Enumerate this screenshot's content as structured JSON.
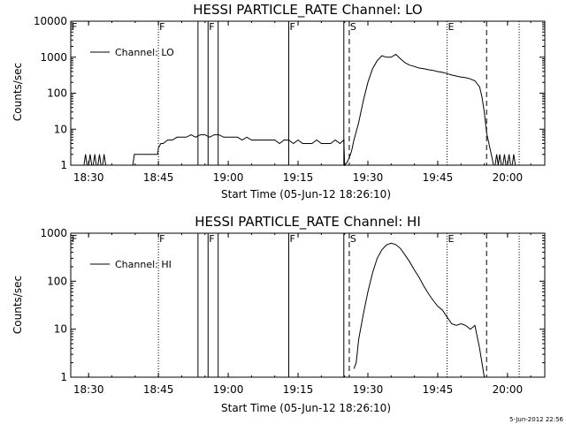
{
  "footer": {
    "timestamp": "5-Jun-2012 22:56"
  },
  "chart_data": [
    {
      "type": "line",
      "title": "HESSI PARTICLE_RATE Channel: LO",
      "xlabel": "Start Time (05-Jun-12 18:26:10)",
      "ylabel": "Counts/sec",
      "y_scale": "log",
      "ylim": [
        1,
        10000
      ],
      "xlim": [
        "18:26:10",
        "20:08"
      ],
      "x_ticks": [
        "18:30",
        "18:45",
        "19:00",
        "19:15",
        "19:30",
        "19:45",
        "20:00"
      ],
      "y_ticks": [
        "1",
        "10",
        "100",
        "1000",
        "10000"
      ],
      "legend": {
        "position": "top-left",
        "entries": [
          "Channel: LO"
        ]
      },
      "grid": false,
      "color": "#000000",
      "flags": [
        {
          "label": "F",
          "time": "18:26:10",
          "style": "none"
        },
        {
          "label": "F",
          "time": "18:45:00",
          "style": "dotted"
        },
        {
          "label": "",
          "time": "18:53:30",
          "style": "solid"
        },
        {
          "label": "F",
          "time": "18:55:40",
          "style": "solid"
        },
        {
          "label": "",
          "time": "18:57:50",
          "style": "solid"
        },
        {
          "label": "F",
          "time": "19:13:00",
          "style": "solid"
        },
        {
          "label": "",
          "time": "19:24:50",
          "style": "solid"
        },
        {
          "label": "S",
          "time": "19:26:00",
          "style": "dashed"
        },
        {
          "label": "E",
          "time": "19:47:00",
          "style": "dotted"
        },
        {
          "label": "",
          "time": "19:55:30",
          "style": "dashed"
        },
        {
          "label": "",
          "time": "20:02:30",
          "style": "dotted"
        }
      ],
      "series": [
        {
          "name": "Channel: LO",
          "x": [
            "18:29:00",
            "18:29:20",
            "18:29:40",
            "18:30:00",
            "18:30:20",
            "18:30:40",
            "18:31:00",
            "18:31:20",
            "18:31:40",
            "18:32:00",
            "18:32:20",
            "18:32:40",
            "18:33:00",
            "18:33:20",
            "18:33:40",
            "18:39:30",
            "18:39:50",
            "18:40:10",
            "18:40:30",
            "18:40:50",
            "18:41:30",
            "18:44:50",
            "18:45:00",
            "18:45:30",
            "18:46:00",
            "18:47:00",
            "18:48:00",
            "18:49:00",
            "18:50:00",
            "18:51:00",
            "18:52:00",
            "18:53:00",
            "18:54:00",
            "18:55:00",
            "18:56:00",
            "18:57:00",
            "18:58:00",
            "18:59:00",
            "19:00:00",
            "19:01:00",
            "19:02:00",
            "19:03:00",
            "19:04:00",
            "19:05:00",
            "19:06:00",
            "19:07:00",
            "19:08:00",
            "19:09:00",
            "19:10:00",
            "19:11:00",
            "19:12:00",
            "19:13:00",
            "19:14:00",
            "19:15:00",
            "19:16:00",
            "19:17:00",
            "19:18:00",
            "19:19:00",
            "19:20:00",
            "19:21:00",
            "19:22:00",
            "19:23:00",
            "19:24:00",
            "19:24:50",
            "19:25:00",
            "19:25:30",
            "19:26:00",
            "19:26:30",
            "19:27:00",
            "19:28:00",
            "19:29:00",
            "19:30:00",
            "19:31:00",
            "19:32:00",
            "19:33:00",
            "19:34:00",
            "19:35:00",
            "19:36:00",
            "19:37:00",
            "19:38:00",
            "19:39:00",
            "19:40:00",
            "19:41:00",
            "19:42:00",
            "19:43:00",
            "19:44:00",
            "19:45:00",
            "19:46:00",
            "19:47:00",
            "19:48:00",
            "19:49:00",
            "19:50:00",
            "19:51:00",
            "19:52:00",
            "19:53:00",
            "19:54:00",
            "19:54:30",
            "19:55:00",
            "19:55:30",
            "19:56:30",
            "19:57:00",
            "19:57:20",
            "19:57:40",
            "19:58:00",
            "19:58:20",
            "19:58:40",
            "19:59:00",
            "19:59:20",
            "19:59:40",
            "20:00:00",
            "20:00:20",
            "20:00:40",
            "20:01:00",
            "20:01:20",
            "20:01:40"
          ],
          "y": [
            1,
            2,
            1,
            1,
            2,
            1,
            1,
            2,
            1,
            1,
            2,
            1,
            1,
            2,
            1,
            1,
            2,
            2,
            2,
            2,
            2,
            2,
            3,
            4,
            4,
            5,
            5,
            6,
            6,
            6,
            7,
            6,
            7,
            7,
            6,
            7,
            7,
            6,
            6,
            6,
            6,
            5,
            6,
            5,
            5,
            5,
            5,
            5,
            5,
            4,
            5,
            5,
            4,
            5,
            4,
            4,
            4,
            5,
            4,
            4,
            4,
            5,
            4,
            5,
            1,
            1.2,
            1.6,
            2.5,
            5,
            15,
            60,
            200,
            480,
            800,
            1100,
            1000,
            1000,
            1200,
            900,
            700,
            600,
            550,
            500,
            480,
            450,
            430,
            400,
            380,
            350,
            320,
            300,
            280,
            270,
            250,
            220,
            150,
            80,
            30,
            8,
            2,
            1,
            1,
            2,
            1,
            2,
            1,
            1,
            2,
            1,
            1,
            2,
            1,
            1,
            2,
            1
          ]
        }
      ]
    },
    {
      "type": "line",
      "title": "HESSI PARTICLE_RATE Channel: HI",
      "xlabel": "Start Time (05-Jun-12 18:26:10)",
      "ylabel": "Counts/sec",
      "y_scale": "log",
      "ylim": [
        1,
        1000
      ],
      "xlim": [
        "18:26:10",
        "20:08"
      ],
      "x_ticks": [
        "18:30",
        "18:45",
        "19:00",
        "19:15",
        "19:30",
        "19:45",
        "20:00"
      ],
      "y_ticks": [
        "1",
        "10",
        "100",
        "1000"
      ],
      "legend": {
        "position": "top-left",
        "entries": [
          "Channel: HI"
        ]
      },
      "grid": false,
      "color": "#000000",
      "flags": [
        {
          "label": "F",
          "time": "18:26:10",
          "style": "none"
        },
        {
          "label": "F",
          "time": "18:45:00",
          "style": "dotted"
        },
        {
          "label": "",
          "time": "18:53:30",
          "style": "solid"
        },
        {
          "label": "F",
          "time": "18:55:40",
          "style": "solid"
        },
        {
          "label": "",
          "time": "18:57:50",
          "style": "solid"
        },
        {
          "label": "F",
          "time": "19:13:00",
          "style": "solid"
        },
        {
          "label": "",
          "time": "19:24:50",
          "style": "solid"
        },
        {
          "label": "S",
          "time": "19:26:00",
          "style": "dashed"
        },
        {
          "label": "E",
          "time": "19:47:00",
          "style": "dotted"
        },
        {
          "label": "",
          "time": "19:55:30",
          "style": "dashed"
        },
        {
          "label": "",
          "time": "20:02:30",
          "style": "dotted"
        }
      ],
      "series": [
        {
          "name": "Channel: HI",
          "x": [
            "19:27:00",
            "19:27:30",
            "19:28:00",
            "19:29:00",
            "19:30:00",
            "19:31:00",
            "19:32:00",
            "19:33:00",
            "19:34:00",
            "19:35:00",
            "19:36:00",
            "19:37:00",
            "19:38:00",
            "19:39:00",
            "19:40:00",
            "19:41:00",
            "19:42:00",
            "19:43:00",
            "19:44:00",
            "19:45:00",
            "19:46:00",
            "19:47:00",
            "19:48:00",
            "19:49:00",
            "19:50:00",
            "19:51:00",
            "19:52:00",
            "19:53:00",
            "19:54:00",
            "19:55:00"
          ],
          "y": [
            1.5,
            2,
            6,
            20,
            60,
            150,
            300,
            450,
            570,
            620,
            580,
            480,
            350,
            250,
            170,
            120,
            80,
            55,
            40,
            30,
            25,
            18,
            13,
            12,
            13,
            12,
            10,
            12,
            4,
            1
          ]
        }
      ]
    }
  ]
}
